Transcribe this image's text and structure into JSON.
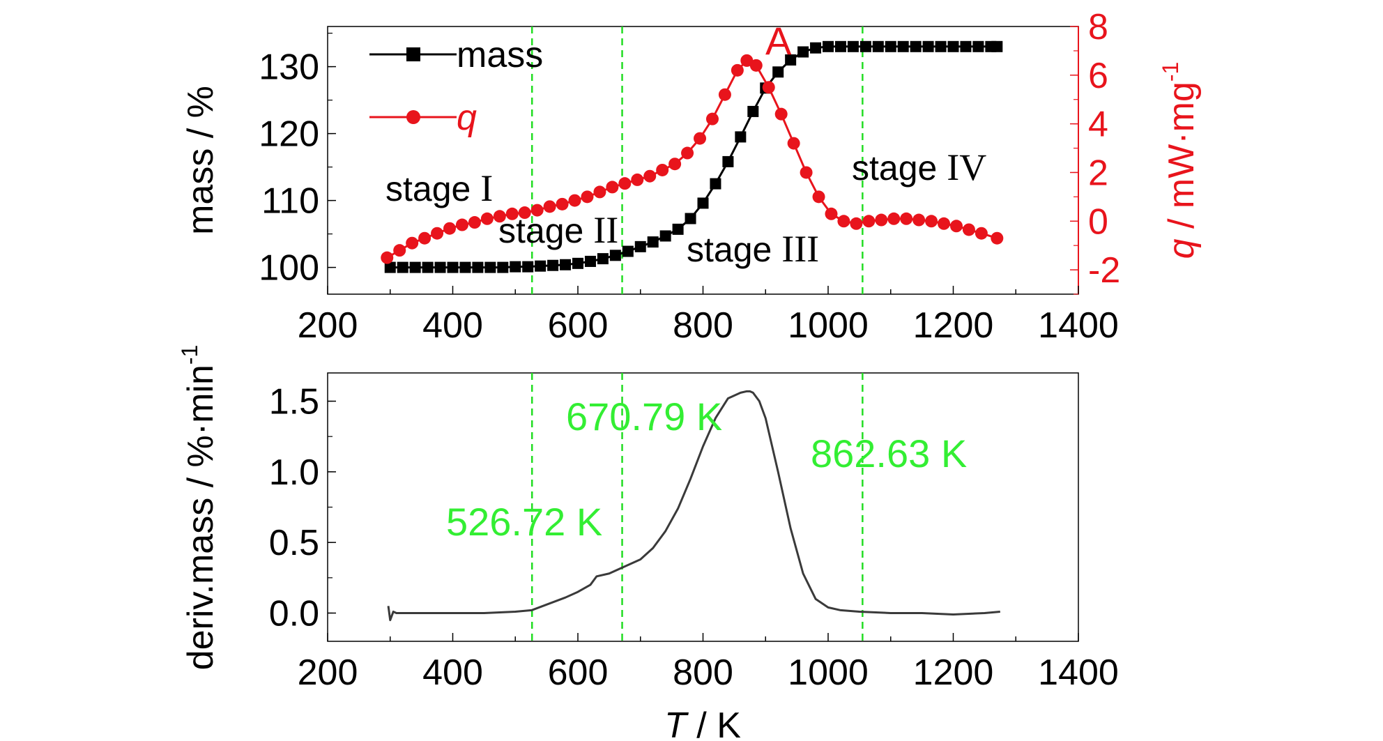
{
  "colors": {
    "mass": "#000000",
    "q": "#e8141c",
    "guide": "#22dd22",
    "deriv": "#3a3a3a"
  },
  "chart_data": [
    {
      "type": "line",
      "panel": "top",
      "xlim": [
        200,
        1400
      ],
      "ylim": [
        96,
        136
      ],
      "y2lim": [
        -3,
        8
      ],
      "xticks": [
        "200",
        "400",
        "600",
        "800",
        "1000",
        "1200",
        "1400"
      ],
      "yticks": [
        "100",
        "110",
        "120",
        "130"
      ],
      "y2ticks": [
        "-2",
        "0",
        "2",
        "4",
        "6",
        "8"
      ],
      "ylabel": "mass / %",
      "y2label_pre": "q",
      "y2label_post": " / mW·mg",
      "y2label_sup": "-1",
      "legend": {
        "position": "top-left",
        "mass": "mass",
        "q": "q"
      },
      "annotation": "A",
      "stages": [
        {
          "prefix": "stage ",
          "numeral": "I"
        },
        {
          "prefix": "stage ",
          "numeral": "II"
        },
        {
          "prefix": "stage ",
          "numeral": "III"
        },
        {
          "prefix": "stage ",
          "numeral": "IV"
        }
      ],
      "series": [
        {
          "name": "mass",
          "axis": "left",
          "x": [
            300,
            320,
            340,
            360,
            380,
            400,
            420,
            440,
            460,
            480,
            500,
            520,
            540,
            560,
            580,
            600,
            620,
            640,
            660,
            680,
            700,
            720,
            740,
            760,
            780,
            800,
            820,
            840,
            860,
            880,
            900,
            920,
            940,
            960,
            980,
            1000,
            1020,
            1040,
            1060,
            1080,
            1100,
            1120,
            1140,
            1160,
            1180,
            1200,
            1220,
            1240,
            1260,
            1270
          ],
          "y": [
            100,
            100,
            100,
            100,
            100,
            100,
            100,
            100,
            100,
            100,
            100.1,
            100.1,
            100.2,
            100.3,
            100.4,
            100.6,
            100.9,
            101.3,
            101.8,
            102.4,
            103.1,
            103.8,
            104.7,
            105.7,
            107.3,
            109.6,
            112.5,
            115.8,
            119.5,
            123.3,
            126.8,
            129.2,
            131,
            132.2,
            132.8,
            133,
            133,
            133,
            133,
            133,
            133,
            133,
            133,
            133,
            133,
            133,
            133,
            133,
            133,
            133
          ]
        },
        {
          "name": "q",
          "axis": "right",
          "x": [
            295,
            315,
            335,
            355,
            375,
            395,
            415,
            435,
            455,
            475,
            495,
            515,
            535,
            555,
            575,
            595,
            615,
            635,
            655,
            675,
            695,
            715,
            735,
            755,
            775,
            795,
            815,
            835,
            855,
            870,
            885,
            905,
            925,
            945,
            965,
            985,
            1005,
            1025,
            1045,
            1065,
            1085,
            1105,
            1125,
            1145,
            1165,
            1185,
            1205,
            1225,
            1245,
            1270
          ],
          "y": [
            -1.5,
            -1.2,
            -0.9,
            -0.7,
            -0.5,
            -0.3,
            -0.15,
            -0.05,
            0.1,
            0.2,
            0.3,
            0.35,
            0.45,
            0.6,
            0.7,
            0.85,
            1,
            1.2,
            1.4,
            1.55,
            1.7,
            1.85,
            2.1,
            2.35,
            2.8,
            3.4,
            4.2,
            5.2,
            6.2,
            6.6,
            6.4,
            5.5,
            4.4,
            3.2,
            2.0,
            1.0,
            0.3,
            0,
            -0.1,
            0,
            0.05,
            0.1,
            0.1,
            0.05,
            0,
            -0.1,
            -0.2,
            -0.35,
            -0.5,
            -0.7
          ]
        }
      ]
    },
    {
      "type": "line",
      "panel": "bottom",
      "xlim": [
        200,
        1400
      ],
      "ylim": [
        -0.2,
        1.7
      ],
      "xticks": [
        "200",
        "400",
        "600",
        "800",
        "1000",
        "1200",
        "1400"
      ],
      "yticks": [
        "0.0",
        "0.5",
        "1.0",
        "1.5"
      ],
      "xlabel_pre": "T",
      "xlabel_post": " / K",
      "ylabel": "deriv.mass / %·min",
      "ylabel_sup": "-1",
      "annotations": [
        "526.72 K",
        "670.79 K",
        "862.63 K"
      ],
      "series": [
        {
          "name": "deriv.mass",
          "x": [
            297,
            300,
            305,
            310,
            350,
            400,
            450,
            500,
            526,
            550,
            580,
            600,
            620,
            630,
            650,
            670,
            700,
            720,
            740,
            760,
            780,
            800,
            820,
            840,
            860,
            870,
            875,
            880,
            890,
            900,
            920,
            940,
            960,
            980,
            1000,
            1020,
            1050,
            1100,
            1150,
            1200,
            1250,
            1275
          ],
          "y": [
            0.05,
            -0.05,
            0.01,
            0.0,
            0.0,
            0.0,
            0.0,
            0.01,
            0.02,
            0.06,
            0.11,
            0.15,
            0.2,
            0.26,
            0.28,
            0.32,
            0.38,
            0.46,
            0.58,
            0.74,
            0.95,
            1.18,
            1.38,
            1.52,
            1.56,
            1.57,
            1.57,
            1.56,
            1.5,
            1.38,
            1.0,
            0.6,
            0.28,
            0.1,
            0.04,
            0.02,
            0.01,
            0.0,
            0.0,
            -0.01,
            0.0,
            0.01
          ]
        }
      ]
    }
  ],
  "guides": {
    "x": [
      526.72,
      670.79,
      1055
    ]
  }
}
